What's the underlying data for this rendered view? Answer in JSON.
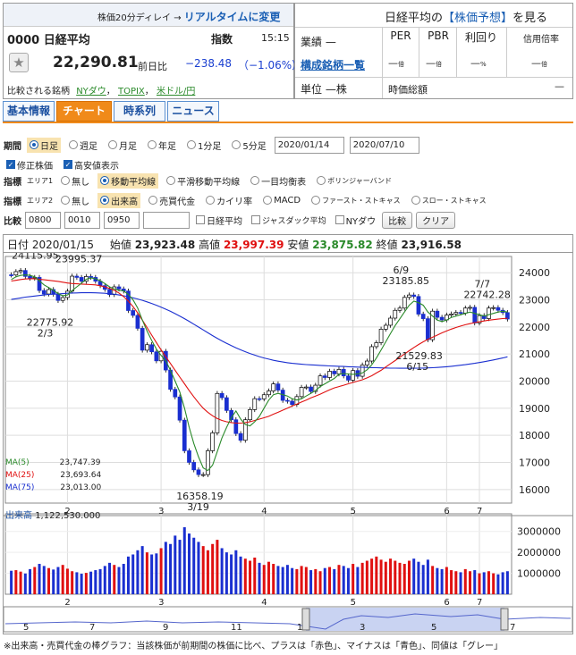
{
  "header": {
    "delay_note": "株価20分ディレイ → ",
    "realtime_link": "リアルタイムに変更",
    "code": "0000",
    "name": "日経平均",
    "index_label": "指数",
    "time": "15:15",
    "price": "22,290.81",
    "change_label": "前日比",
    "change": "−238.48",
    "change_pct": "（−1.06%）",
    "compare_label": "比較される銘柄",
    "compare_links": [
      "NYダウ",
      "TOPIX",
      "米ドル/円"
    ]
  },
  "right_panel": {
    "forecast_prefix": "日経平均の",
    "forecast_link": "【株価予想】",
    "forecast_suffix": "を見る",
    "gyoseki_label": "業績",
    "gyoseki_value": "—",
    "components_link": "構成銘柄一覧",
    "unit_label": "単位",
    "unit_value": "—株",
    "metrics": [
      {
        "label": "PER",
        "value": "—",
        "unit": "倍"
      },
      {
        "label": "PBR",
        "value": "—",
        "unit": "倍"
      },
      {
        "label": "利回り",
        "value": "—",
        "unit": "%"
      },
      {
        "label": "信用倍率",
        "value": "—",
        "unit": "倍"
      }
    ],
    "market_cap_label": "時価総額",
    "market_cap_value": "—"
  },
  "tabs": [
    "基本情報",
    "チャート",
    "時系列",
    "ニュース"
  ],
  "controls": {
    "period_label": "期間",
    "periods": [
      "日足",
      "週足",
      "月足",
      "年足",
      "1分足",
      "5分足"
    ],
    "date_from": "2020/01/14",
    "date_to": "2020/07/10",
    "chk_adjusted": "修正株価",
    "chk_highlow": "高安値表示",
    "ind_label": "指標",
    "area1": "エリア1",
    "area1_opts": [
      "無し",
      "移動平均線",
      "平滑移動平均線",
      "一目均衡表",
      "ボリンジャーバンド"
    ],
    "area2": "エリア2",
    "area2_opts": [
      "無し",
      "出来高",
      "売買代金",
      "カイリ率",
      "MACD",
      "ファースト・ストキャス",
      "スロー・ストキャス"
    ],
    "cmp_label": "比較",
    "cmp_inputs": [
      "0800",
      "0010",
      "0950",
      ""
    ],
    "cmp_checks": [
      "日経平均",
      "ジャスダック平均",
      "NYダウ"
    ],
    "cmp_button": "比較",
    "clear_button": "クリア"
  },
  "ohlc_bar": {
    "date_label": "日付",
    "date": "2020/01/15",
    "open_label": "始値",
    "open": "23,923.48",
    "high_label": "高値",
    "high": "23,997.39",
    "low_label": "安値",
    "low": "23,875.82",
    "close_label": "終値",
    "close": "23,916.58"
  },
  "ma_legend": [
    {
      "label": "MA(5)",
      "value": "23,747.39",
      "color": "#2a8a2a"
    },
    {
      "label": "MA(25)",
      "value": "23,693.64",
      "color": "#e01010"
    },
    {
      "label": "MA(75)",
      "value": "23,013.00",
      "color": "#1a2fd0"
    }
  ],
  "volume_label": "出来高",
  "volume_value": "1,122,530.000",
  "chart_data": {
    "type": "candlestick",
    "y_ticks": [
      "24000",
      "23000",
      "22000",
      "21000",
      "20000",
      "19000",
      "18000",
      "17000",
      "16000"
    ],
    "ylim": [
      15500,
      24600
    ],
    "x_month_labels": [
      "2",
      "3",
      "4",
      "5",
      "6",
      "7"
    ],
    "annotations": [
      {
        "text": "1/17",
        "value": "24115.95"
      },
      {
        "text": "2/6",
        "value": "23995.37"
      },
      {
        "text": "2/3",
        "value": "22775.92"
      },
      {
        "text": "3/19",
        "value": "16358.19"
      },
      {
        "text": "6/9",
        "value": "23185.85"
      },
      {
        "text": "6/15",
        "value": "21529.83"
      },
      {
        "text": "7/7",
        "value": "22742.28"
      }
    ],
    "close": [
      23916,
      24041,
      24083,
      23864,
      23795,
      23827,
      23343,
      23215,
      23379,
      23205,
      22977,
      23084,
      23319,
      23873,
      23827,
      23685,
      23861,
      23827,
      23687,
      23523,
      23386,
      23193,
      23479,
      23400,
      23325,
      22605,
      22426,
      21948,
      21142,
      21344,
      21082,
      20749,
      21100,
      20410,
      19698,
      19416,
      18560,
      17431,
      17002,
      16726,
      16552,
      16552,
      17431,
      18092,
      19546,
      19389,
      18917,
      18576,
      18065,
      17818,
      18576,
      18950,
      19353,
      19345,
      19498,
      19638,
      19897,
      19669,
      19290,
      19262,
      19138,
      19429,
      19771,
      19783,
      19619,
      19850,
      20193,
      20133,
      20365,
      20267,
      20434,
      20193,
      20037,
      20390,
      20179,
      20595,
      20741,
      21271,
      21419,
      21916,
      22062,
      22325,
      22613,
      22695,
      23091,
      23178,
      23124,
      22472,
      22305,
      21530,
      22582,
      22355,
      22259,
      22437,
      22478,
      22534,
      22512,
      22696,
      22722,
      22146,
      22418,
      22307,
      22696,
      22714,
      22614,
      22529,
      22291
    ],
    "ma5": [
      23747,
      23850,
      23900,
      23920,
      23900,
      23850,
      23700,
      23550,
      23450,
      23350,
      23230,
      23150,
      23180,
      23340,
      23480,
      23610,
      23760,
      23810,
      23780,
      23700,
      23600,
      23480,
      23400,
      23350,
      23330,
      23200,
      23000,
      22700,
      22250,
      21850,
      21500,
      21180,
      20950,
      20750,
      20400,
      20000,
      19600,
      19000,
      18300,
      17700,
      17200,
      16800,
      16700,
      16900,
      17400,
      17900,
      18300,
      18650,
      18900,
      18600,
      18400,
      18350,
      18500,
      18700,
      19000,
      19300,
      19500,
      19550,
      19500,
      19450,
      19350,
      19300,
      19350,
      19450,
      19550,
      19650,
      19800,
      19900,
      20000,
      20100,
      20250,
      20280,
      20260,
      20250,
      20270,
      20300,
      20420,
      20600,
      20850,
      21150,
      21450,
      21750,
      22050,
      22300,
      22550,
      22800,
      22950,
      22900,
      22800,
      22550,
      22400,
      22250,
      22200,
      22250,
      22350,
      22400,
      22450,
      22500,
      22550,
      22500,
      22450,
      22400,
      22450,
      22500,
      22550,
      22580,
      22550
    ],
    "ma25": [
      23693,
      23720,
      23750,
      23770,
      23780,
      23780,
      23760,
      23740,
      23720,
      23700,
      23680,
      23650,
      23620,
      23600,
      23590,
      23580,
      23570,
      23560,
      23550,
      23520,
      23480,
      23420,
      23350,
      23250,
      23120,
      22950,
      22750,
      22520,
      22250,
      21980,
      21700,
      21420,
      21150,
      20900,
      20650,
      20400,
      20150,
      19900,
      19650,
      19420,
      19200,
      19000,
      18850,
      18720,
      18620,
      18550,
      18500,
      18470,
      18450,
      18450,
      18470,
      18500,
      18550,
      18600,
      18650,
      18700,
      18780,
      18850,
      18930,
      19000,
      19080,
      19150,
      19230,
      19300,
      19380,
      19450,
      19520,
      19600,
      19680,
      19750,
      19800,
      19850,
      19900,
      19950,
      20000,
      20050,
      20120,
      20200,
      20300,
      20400,
      20520,
      20640,
      20760,
      20880,
      21000,
      21120,
      21240,
      21350,
      21450,
      21540,
      21620,
      21700,
      21780,
      21850,
      21920,
      21980,
      22030,
      22080,
      22120,
      22160,
      22190,
      22220,
      22250,
      22270,
      22290,
      22310,
      22320
    ],
    "ma75": [
      23013,
      23040,
      23070,
      23100,
      23120,
      23140,
      23160,
      23180,
      23200,
      23210,
      23220,
      23230,
      23240,
      23250,
      23255,
      23260,
      23262,
      23262,
      23258,
      23250,
      23240,
      23225,
      23205,
      23180,
      23150,
      23115,
      23075,
      23030,
      22980,
      22925,
      22865,
      22800,
      22730,
      22655,
      22575,
      22490,
      22400,
      22305,
      22205,
      22100,
      21995,
      21890,
      21785,
      21680,
      21580,
      21485,
      21395,
      21310,
      21230,
      21155,
      21085,
      21020,
      20960,
      20905,
      20855,
      20810,
      20770,
      20735,
      20705,
      20680,
      20658,
      20640,
      20625,
      20612,
      20600,
      20590,
      20580,
      20570,
      20562,
      20555,
      20548,
      20540,
      20532,
      20525,
      20518,
      20512,
      20506,
      20500,
      20495,
      20490,
      20485,
      20480,
      20478,
      20476,
      20475,
      20475,
      20476,
      20478,
      20482,
      20488,
      20496,
      20506,
      20518,
      20532,
      20548,
      20566,
      20586,
      20608,
      20632,
      20658,
      20686,
      20716,
      20748,
      20782,
      20818,
      20856,
      20896
    ],
    "vol_ticks": [
      "3000000",
      "2000000",
      "1000000"
    ],
    "volume": [
      1122530,
      1150000,
      1080000,
      990000,
      1200000,
      1300000,
      1450000,
      1350000,
      1250000,
      1180000,
      1300000,
      1400000,
      1220000,
      1100000,
      1050000,
      980000,
      1020000,
      1080000,
      1150000,
      1200000,
      1350000,
      1500000,
      1400000,
      1300000,
      1450000,
      1800000,
      1900000,
      2100000,
      2300000,
      2000000,
      1900000,
      1950000,
      2200000,
      2500000,
      2400000,
      2800000,
      2600000,
      3200000,
      2900000,
      2700000,
      2500000,
      2300000,
      2100000,
      2400000,
      2600000,
      2200000,
      2000000,
      1900000,
      2100000,
      1800000,
      1700000,
      1600000,
      1750000,
      1500000,
      1400000,
      1550000,
      1450000,
      1350000,
      1300000,
      1400000,
      1250000,
      1200000,
      1350000,
      1300000,
      1150000,
      1200000,
      1100000,
      1250000,
      1300000,
      1200000,
      1400000,
      1350000,
      1250000,
      1450000,
      1300000,
      1500000,
      1600000,
      1700000,
      1800000,
      1650000,
      1550000,
      1700000,
      1600000,
      1500000,
      1450000,
      1600000,
      1700000,
      1550000,
      1400000,
      1650000,
      1350000,
      1250000,
      1200000,
      1300000,
      1150000,
      1100000,
      1050000,
      1200000,
      1100000,
      1150000,
      1000000,
      1050000,
      1100000,
      1000000,
      950000,
      1050000,
      1100000
    ],
    "nav_labels": [
      "5",
      "7",
      "9",
      "11",
      "1",
      "3",
      "5",
      "7"
    ]
  },
  "footnote": "※出来高・売買代金の棒グラフ：当該株価が前期間の株価に比べ、プラスは「赤色」、マイナスは「青色」、同値は「グレー」"
}
